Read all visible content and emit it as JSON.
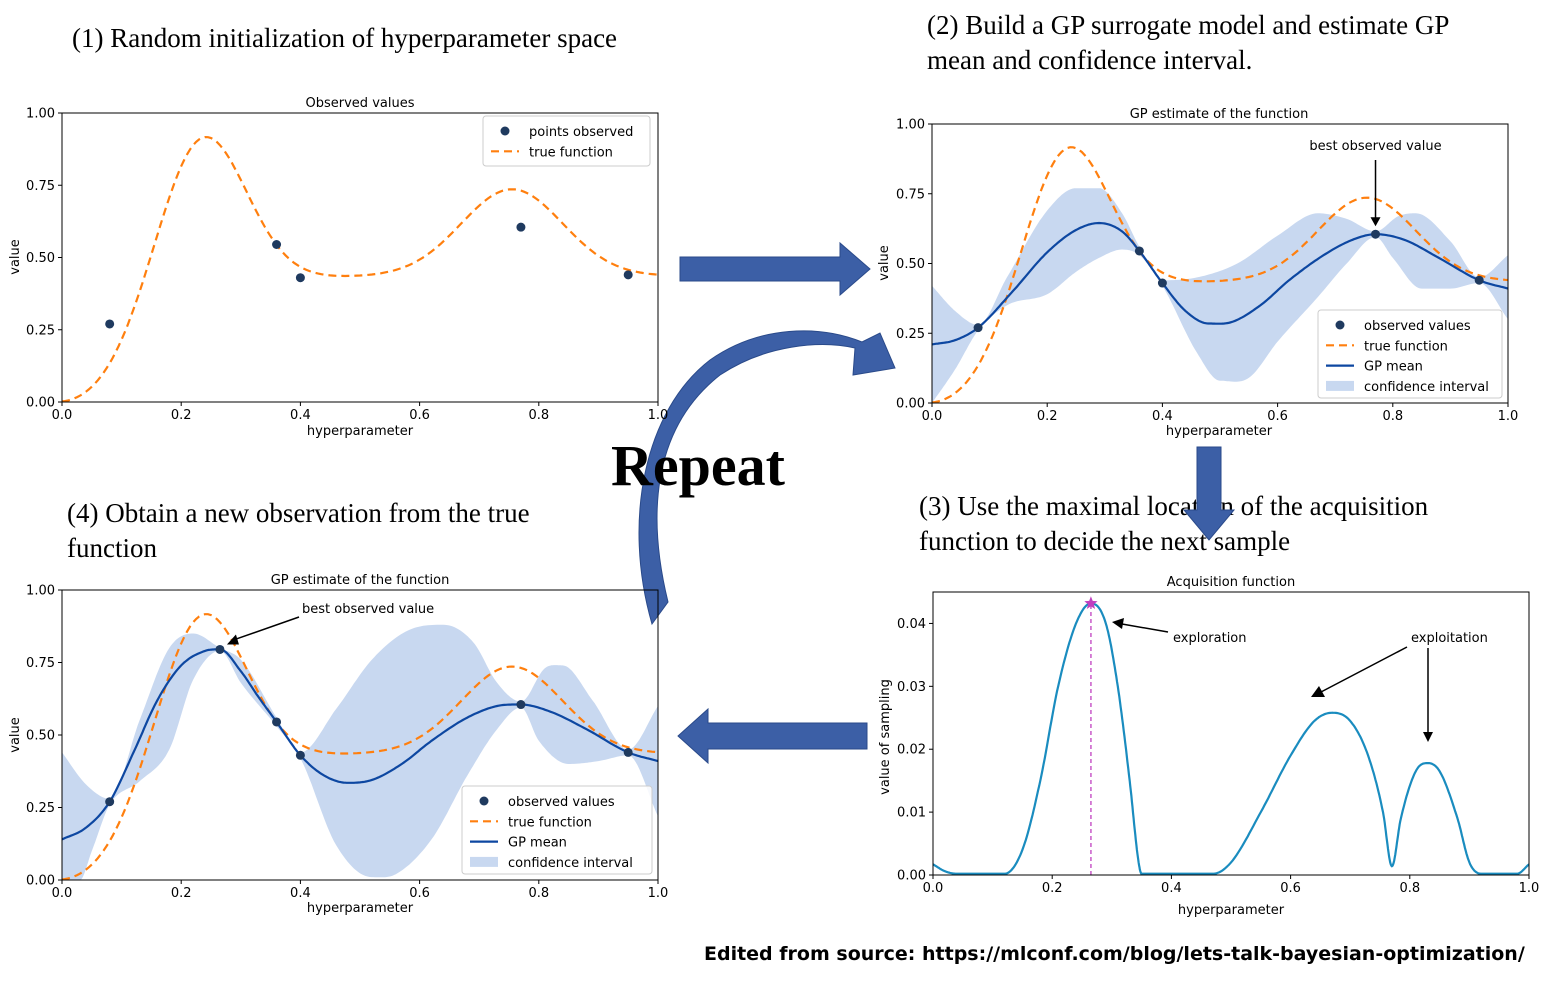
{
  "steps": {
    "s1": "(1) Random initialization of hyperparameter space",
    "s2_line1": "(2) Build a GP surrogate model and estimate GP",
    "s2_line2": "mean and confidence interval.",
    "s3_line1": "(3) Use the maximal location of the acquisition",
    "s3_line2": "function to decide the next sample",
    "s4_line1": "(4) Obtain a new observation from the true",
    "s4_line2": "function"
  },
  "repeat_label": "Repeat",
  "credit": "Edited from source: https://mlconf.com/blog/lets-talk-bayesian-optimization/",
  "colors": {
    "true_function": "#ff7f0e",
    "gp_mean": "#0d47a1",
    "confidence": "#c8d8f0",
    "points": "#1f3a5f",
    "acquisition": "#1a8cbf",
    "next_sample": "#c040c0",
    "flow_arrow": "#3c5fa6"
  },
  "chart_data": [
    {
      "id": "p1",
      "type": "line",
      "title": "Observed values",
      "xlabel": "hyperparameter",
      "ylabel": "value",
      "xlim": [
        0,
        1
      ],
      "ylim": [
        0,
        1
      ],
      "xticks": [
        "0.0",
        "0.2",
        "0.4",
        "0.6",
        "0.8",
        "1.0"
      ],
      "yticks": [
        "0.00",
        "0.25",
        "0.50",
        "0.75",
        "1.00"
      ],
      "legend": [
        "points observed",
        "true function"
      ],
      "points": [
        [
          0.08,
          0.27
        ],
        [
          0.36,
          0.545
        ],
        [
          0.4,
          0.43
        ],
        [
          0.77,
          0.605
        ],
        [
          0.95,
          0.44
        ]
      ],
      "annotations": []
    },
    {
      "id": "p2",
      "type": "line",
      "title": "GP estimate of the function",
      "xlabel": "hyperparameter",
      "ylabel": "value",
      "xlim": [
        0,
        1
      ],
      "ylim": [
        0,
        1
      ],
      "xticks": [
        "0.0",
        "0.2",
        "0.4",
        "0.6",
        "0.8",
        "1.0"
      ],
      "yticks": [
        "0.00",
        "0.25",
        "0.50",
        "0.75",
        "1.00"
      ],
      "legend": [
        "observed values",
        "true function",
        "GP mean",
        "confidence interval"
      ],
      "points": [
        [
          0.08,
          0.27
        ],
        [
          0.36,
          0.545
        ],
        [
          0.4,
          0.43
        ],
        [
          0.77,
          0.605
        ],
        [
          0.95,
          0.44
        ]
      ],
      "gp_mean": [
        [
          0.0,
          0.21
        ],
        [
          0.04,
          0.225
        ],
        [
          0.08,
          0.27
        ],
        [
          0.14,
          0.4
        ],
        [
          0.2,
          0.54
        ],
        [
          0.25,
          0.62
        ],
        [
          0.29,
          0.645
        ],
        [
          0.33,
          0.615
        ],
        [
          0.36,
          0.545
        ],
        [
          0.4,
          0.43
        ],
        [
          0.44,
          0.33
        ],
        [
          0.48,
          0.285
        ],
        [
          0.52,
          0.29
        ],
        [
          0.57,
          0.35
        ],
        [
          0.62,
          0.44
        ],
        [
          0.68,
          0.53
        ],
        [
          0.73,
          0.585
        ],
        [
          0.77,
          0.605
        ],
        [
          0.82,
          0.585
        ],
        [
          0.88,
          0.52
        ],
        [
          0.95,
          0.44
        ],
        [
          1.0,
          0.41
        ]
      ],
      "conf_upper": [
        [
          0.0,
          0.42
        ],
        [
          0.04,
          0.33
        ],
        [
          0.08,
          0.28
        ],
        [
          0.13,
          0.45
        ],
        [
          0.2,
          0.69
        ],
        [
          0.25,
          0.77
        ],
        [
          0.29,
          0.77
        ],
        [
          0.33,
          0.68
        ],
        [
          0.36,
          0.56
        ],
        [
          0.4,
          0.44
        ],
        [
          0.46,
          0.45
        ],
        [
          0.53,
          0.5
        ],
        [
          0.6,
          0.6
        ],
        [
          0.67,
          0.68
        ],
        [
          0.72,
          0.66
        ],
        [
          0.77,
          0.615
        ],
        [
          0.81,
          0.67
        ],
        [
          0.84,
          0.68
        ],
        [
          0.9,
          0.58
        ],
        [
          0.95,
          0.45
        ],
        [
          1.0,
          0.53
        ]
      ],
      "conf_lower": [
        [
          0.0,
          0.0
        ],
        [
          0.04,
          0.12
        ],
        [
          0.08,
          0.26
        ],
        [
          0.13,
          0.35
        ],
        [
          0.2,
          0.39
        ],
        [
          0.25,
          0.47
        ],
        [
          0.29,
          0.52
        ],
        [
          0.33,
          0.55
        ],
        [
          0.36,
          0.53
        ],
        [
          0.4,
          0.42
        ],
        [
          0.46,
          0.18
        ],
        [
          0.5,
          0.08
        ],
        [
          0.55,
          0.09
        ],
        [
          0.6,
          0.22
        ],
        [
          0.67,
          0.38
        ],
        [
          0.72,
          0.5
        ],
        [
          0.77,
          0.595
        ],
        [
          0.8,
          0.52
        ],
        [
          0.85,
          0.41
        ],
        [
          0.9,
          0.41
        ],
        [
          0.95,
          0.43
        ],
        [
          1.0,
          0.3
        ]
      ],
      "annotations": [
        {
          "text": "best observed value",
          "x": 0.77,
          "y": 0.605
        }
      ]
    },
    {
      "id": "p3",
      "type": "line",
      "title": "Acquisition function",
      "xlabel": "hyperparameter",
      "ylabel": "value of sampling",
      "xlim": [
        0,
        1
      ],
      "ylim": [
        0,
        0.045
      ],
      "xticks": [
        "0.0",
        "0.2",
        "0.4",
        "0.6",
        "0.8",
        "1.0"
      ],
      "yticks": [
        "0.00",
        "0.01",
        "0.02",
        "0.03",
        "0.04"
      ],
      "legend": [],
      "curve": [
        [
          0.0,
          0.0017
        ],
        [
          0.02,
          0.0006
        ],
        [
          0.04,
          0.0002
        ],
        [
          0.12,
          0.0002
        ],
        [
          0.15,
          0.004
        ],
        [
          0.18,
          0.015
        ],
        [
          0.21,
          0.03
        ],
        [
          0.24,
          0.04
        ],
        [
          0.265,
          0.0432
        ],
        [
          0.29,
          0.04
        ],
        [
          0.31,
          0.03
        ],
        [
          0.33,
          0.015
        ],
        [
          0.345,
          0.002
        ],
        [
          0.35,
          0.0002
        ],
        [
          0.47,
          0.0002
        ],
        [
          0.5,
          0.002
        ],
        [
          0.55,
          0.01
        ],
        [
          0.6,
          0.019
        ],
        [
          0.64,
          0.0245
        ],
        [
          0.67,
          0.0258
        ],
        [
          0.7,
          0.0245
        ],
        [
          0.73,
          0.019
        ],
        [
          0.755,
          0.01
        ],
        [
          0.77,
          0.0014
        ],
        [
          0.785,
          0.009
        ],
        [
          0.81,
          0.0165
        ],
        [
          0.83,
          0.0178
        ],
        [
          0.85,
          0.0165
        ],
        [
          0.88,
          0.009
        ],
        [
          0.9,
          0.002
        ],
        [
          0.92,
          0.0002
        ],
        [
          0.98,
          0.0002
        ],
        [
          1.0,
          0.0017
        ]
      ],
      "next_sample": {
        "x": 0.265,
        "y": 0.0432
      },
      "annotations": [
        {
          "text": "exploration"
        },
        {
          "text": "exploitation"
        }
      ]
    },
    {
      "id": "p4",
      "type": "line",
      "title": "GP estimate of the function",
      "xlabel": "hyperparameter",
      "ylabel": "value",
      "xlim": [
        0,
        1
      ],
      "ylim": [
        0,
        1
      ],
      "xticks": [
        "0.0",
        "0.2",
        "0.4",
        "0.6",
        "0.8",
        "1.0"
      ],
      "yticks": [
        "0.00",
        "0.25",
        "0.50",
        "0.75",
        "1.00"
      ],
      "legend": [
        "observed values",
        "true function",
        "GP mean",
        "confidence interval"
      ],
      "points": [
        [
          0.08,
          0.27
        ],
        [
          0.265,
          0.795
        ],
        [
          0.36,
          0.545
        ],
        [
          0.4,
          0.43
        ],
        [
          0.77,
          0.605
        ],
        [
          0.95,
          0.44
        ]
      ],
      "gp_mean": [
        [
          0.0,
          0.14
        ],
        [
          0.04,
          0.18
        ],
        [
          0.08,
          0.27
        ],
        [
          0.12,
          0.44
        ],
        [
          0.16,
          0.62
        ],
        [
          0.2,
          0.74
        ],
        [
          0.24,
          0.79
        ],
        [
          0.265,
          0.795
        ],
        [
          0.3,
          0.72
        ],
        [
          0.33,
          0.63
        ],
        [
          0.36,
          0.545
        ],
        [
          0.4,
          0.43
        ],
        [
          0.44,
          0.36
        ],
        [
          0.48,
          0.335
        ],
        [
          0.52,
          0.345
        ],
        [
          0.57,
          0.4
        ],
        [
          0.62,
          0.48
        ],
        [
          0.68,
          0.56
        ],
        [
          0.73,
          0.6
        ],
        [
          0.77,
          0.605
        ],
        [
          0.82,
          0.58
        ],
        [
          0.88,
          0.52
        ],
        [
          0.95,
          0.44
        ],
        [
          1.0,
          0.41
        ]
      ],
      "conf_upper": [
        [
          0.0,
          0.44
        ],
        [
          0.04,
          0.33
        ],
        [
          0.08,
          0.28
        ],
        [
          0.13,
          0.55
        ],
        [
          0.18,
          0.8
        ],
        [
          0.22,
          0.85
        ],
        [
          0.265,
          0.8
        ],
        [
          0.3,
          0.76
        ],
        [
          0.36,
          0.56
        ],
        [
          0.4,
          0.44
        ],
        [
          0.46,
          0.59
        ],
        [
          0.52,
          0.76
        ],
        [
          0.58,
          0.86
        ],
        [
          0.64,
          0.88
        ],
        [
          0.69,
          0.82
        ],
        [
          0.73,
          0.68
        ],
        [
          0.77,
          0.615
        ],
        [
          0.81,
          0.73
        ],
        [
          0.84,
          0.74
        ],
        [
          0.89,
          0.62
        ],
        [
          0.95,
          0.45
        ],
        [
          1.0,
          0.6
        ]
      ],
      "conf_lower": [
        [
          0.0,
          0.0
        ],
        [
          0.03,
          0.0
        ],
        [
          0.05,
          0.1
        ],
        [
          0.08,
          0.26
        ],
        [
          0.13,
          0.34
        ],
        [
          0.18,
          0.45
        ],
        [
          0.22,
          0.69
        ],
        [
          0.265,
          0.79
        ],
        [
          0.3,
          0.68
        ],
        [
          0.36,
          0.53
        ],
        [
          0.4,
          0.42
        ],
        [
          0.46,
          0.12
        ],
        [
          0.52,
          0.01
        ],
        [
          0.56,
          0.02
        ],
        [
          0.62,
          0.14
        ],
        [
          0.68,
          0.36
        ],
        [
          0.73,
          0.52
        ],
        [
          0.77,
          0.595
        ],
        [
          0.8,
          0.48
        ],
        [
          0.85,
          0.4
        ],
        [
          0.9,
          0.41
        ],
        [
          0.95,
          0.43
        ],
        [
          1.0,
          0.22
        ]
      ],
      "annotations": [
        {
          "text": "best observed value",
          "x": 0.265,
          "y": 0.795
        }
      ]
    }
  ]
}
